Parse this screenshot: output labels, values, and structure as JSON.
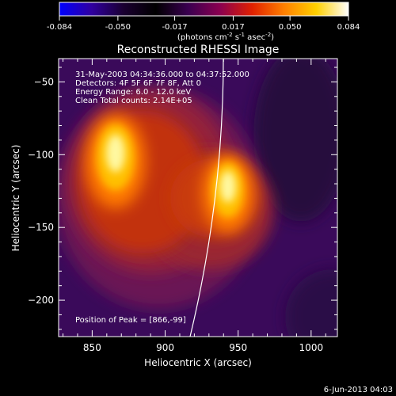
{
  "chart_data": {
    "type": "heatmap",
    "title": "Reconstructed RHESSI Image",
    "colorbar": {
      "ticks": [
        "-0.084",
        "-0.050",
        "-0.017",
        "0.017",
        "0.050",
        "0.084"
      ],
      "range": [
        -0.084,
        0.084
      ],
      "unit_main": "(photons cm",
      "unit_exp1": "-2",
      "unit_mid": " s",
      "unit_exp2": "-1",
      "unit_mid2": " asec",
      "unit_exp3": "-2",
      "unit_end": ")",
      "colors": [
        "#0000ff",
        "#3000a0",
        "#1a0030",
        "#000000",
        "#3a0050",
        "#8a0050",
        "#e02000",
        "#ff8000",
        "#ffd000",
        "#ffffff"
      ]
    },
    "xlabel": "Heliocentric X (arcsec)",
    "ylabel": "Heliocentric Y (arcsec)",
    "xlim": [
      827,
      1018
    ],
    "ylim": [
      -225,
      -34
    ],
    "xticks": [
      850,
      900,
      950,
      1000
    ],
    "yticks": [
      -50,
      -100,
      -150,
      -200
    ],
    "annotations": [
      "31-May-2003 04:34:36.000 to 04:37:52.000",
      "Detectors: 4F 5F 6F 7F 8F, Att 0",
      "Energy Range: 6.0 - 12.0 keV",
      "Clean    Total counts: 2.14E+05"
    ],
    "peak_label": "Position of Peak = [866,-99]",
    "peak": [
      866,
      -99
    ],
    "footer": "6-Jun-2013 04:03",
    "sources": [
      {
        "x": 866,
        "y": -99,
        "intensity": 1.0
      },
      {
        "x": 943,
        "y": -122,
        "intensity": 0.82
      }
    ]
  }
}
